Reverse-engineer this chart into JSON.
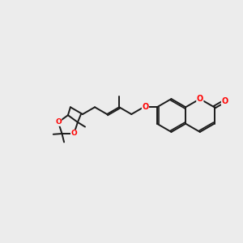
{
  "bg": "#ececec",
  "bc": "#1a1a1a",
  "oc": "#ff0000",
  "lw": 1.4,
  "lw_thin": 1.1,
  "figsize": [
    3.0,
    3.0
  ],
  "dpi": 100,
  "xlim": [
    0,
    10
  ],
  "ylim": [
    0,
    10
  ]
}
